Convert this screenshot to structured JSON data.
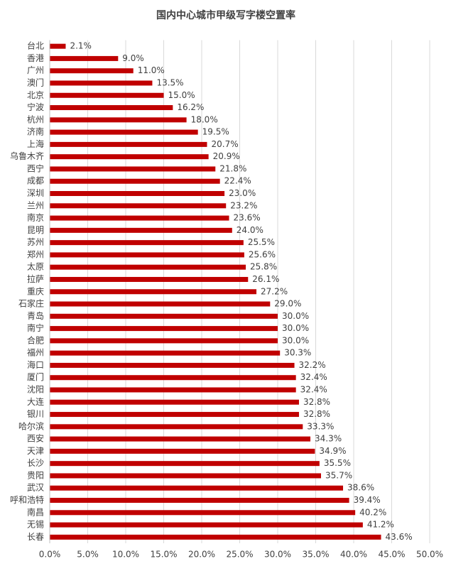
{
  "chart_data": {
    "type": "hbar",
    "title": "国内中心城市甲级写字楼空置率",
    "categories": [
      "台北",
      "香港",
      "广州",
      "澳门",
      "北京",
      "宁波",
      "杭州",
      "济南",
      "上海",
      "乌鲁木齐",
      "西宁",
      "成都",
      "深圳",
      "兰州",
      "南京",
      "昆明",
      "苏州",
      "郑州",
      "太原",
      "拉萨",
      "重庆",
      "石家庄",
      "青岛",
      "南宁",
      "合肥",
      "福州",
      "海口",
      "厦门",
      "沈阳",
      "大连",
      "银川",
      "哈尔滨",
      "西安",
      "天津",
      "长沙",
      "贵阳",
      "武汉",
      "呼和浩特",
      "南昌",
      "无锡",
      "长春"
    ],
    "values": [
      2.1,
      9.0,
      11.0,
      13.5,
      15.0,
      16.2,
      18.0,
      19.5,
      20.7,
      20.9,
      21.8,
      22.4,
      23.0,
      23.2,
      23.6,
      24.0,
      25.5,
      25.6,
      25.8,
      26.1,
      27.2,
      29.0,
      30.0,
      30.0,
      30.0,
      30.3,
      32.2,
      32.4,
      32.4,
      32.8,
      32.8,
      33.3,
      34.3,
      34.9,
      35.5,
      35.7,
      38.6,
      39.4,
      40.2,
      41.2,
      43.6
    ],
    "value_labels": [
      "2.1%",
      "9.0%",
      "11.0%",
      "13.5%",
      "15.0%",
      "16.2%",
      "18.0%",
      "19.5%",
      "20.7%",
      "20.9%",
      "21.8%",
      "22.4%",
      "23.0%",
      "23.2%",
      "23.6%",
      "24.0%",
      "25.5%",
      "25.6%",
      "25.8%",
      "26.1%",
      "27.2%",
      "29.0%",
      "30.0%",
      "30.0%",
      "30.0%",
      "30.3%",
      "32.2%",
      "32.4%",
      "32.4%",
      "32.8%",
      "32.8%",
      "33.3%",
      "34.3%",
      "34.9%",
      "35.5%",
      "35.7%",
      "38.6%",
      "39.4%",
      "40.2%",
      "41.2%",
      "43.6%"
    ],
    "color": "#c00000",
    "xlim": [
      0,
      50
    ],
    "xticks": [
      {
        "value": 0,
        "label": "0.0%"
      },
      {
        "value": 5,
        "label": "5.0%"
      },
      {
        "value": 10,
        "label": "10.0%"
      },
      {
        "value": 15,
        "label": "15.0%"
      },
      {
        "value": 20,
        "label": "20.0%"
      },
      {
        "value": 25,
        "label": "25.0%"
      },
      {
        "value": 30,
        "label": "30.0%"
      },
      {
        "value": 35,
        "label": "35.0%"
      },
      {
        "value": 40,
        "label": "40.0%"
      },
      {
        "value": 45,
        "label": "45.0%"
      },
      {
        "value": 50,
        "label": "50.0%"
      }
    ],
    "grid": true
  }
}
